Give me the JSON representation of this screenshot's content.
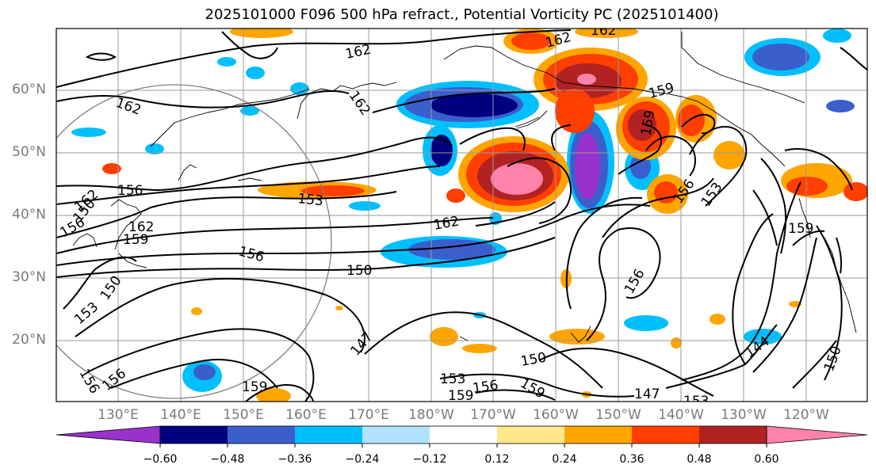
{
  "title": "2025101000 F096 500 hPa refract., Potential Vorticity PC (2025101400)",
  "lat_labels": [
    "60°N",
    "50°N",
    "40°N",
    "30°N",
    "20°N"
  ],
  "lon_labels": [
    "130°E",
    "140°E",
    "150°E",
    "160°E",
    "170°E",
    "180°W",
    "170°W",
    "160°W",
    "150°W",
    "140°W",
    "130°W",
    "120°W"
  ],
  "colorbar": {
    "ticks": [
      "−0.60",
      "−0.48",
      "−0.36",
      "−0.24",
      "−0.12",
      "0.12",
      "0.24",
      "0.36",
      "0.48",
      "0.60"
    ],
    "colors": [
      "#9932cc",
      "#000080",
      "#3a5fcd",
      "#00bfff",
      "#b0e2ff",
      "#ffffff",
      "#ffe78a",
      "#ffa500",
      "#ff3e00",
      "#b22222",
      "#ff82ab"
    ]
  },
  "contour_labels": [
    "162",
    "162",
    "162",
    "162",
    "162",
    "159",
    "156",
    "153",
    "159",
    "156",
    "153",
    "156",
    "162",
    "159",
    "156",
    "153",
    "150",
    "150",
    "147",
    "150",
    "153",
    "159",
    "156",
    "159",
    "147",
    "153",
    "159",
    "156",
    "144",
    "150",
    "162",
    "156",
    "156",
    "159",
    "150",
    "162"
  ]
}
